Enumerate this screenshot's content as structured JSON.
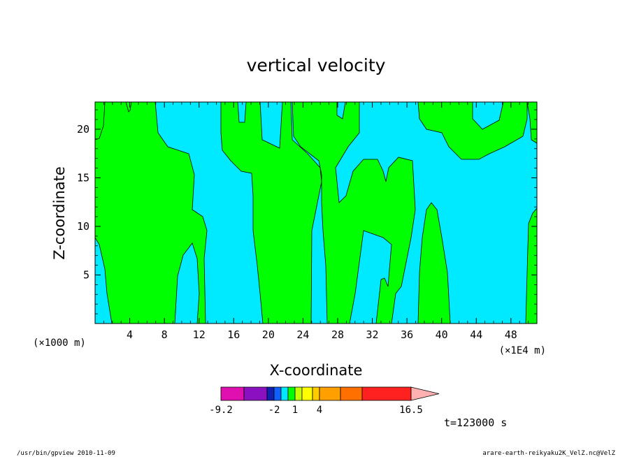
{
  "chart_data": {
    "type": "heatmap",
    "title": "vertical velocity",
    "xlabel": "X-coordinate",
    "ylabel": "Z-coordinate",
    "x_unit_left": "(×1000 m)",
    "x_unit_right": "(×1E4 m)",
    "xlim": [
      0,
      51
    ],
    "ylim": [
      0,
      22.8
    ],
    "x_ticks": [
      4,
      8,
      12,
      16,
      20,
      24,
      28,
      32,
      36,
      40,
      44,
      48
    ],
    "y_ticks": [
      5,
      10,
      15,
      20
    ],
    "colors": {
      "positive": "#00ff00",
      "negative": "#00eaff"
    },
    "colorbar": {
      "colors": [
        "#e010b0",
        "#8a10c0",
        "#1020b0",
        "#1060ff",
        "#00e8ff",
        "#00ff00",
        "#c8ff00",
        "#ffff00",
        "#ffcc00",
        "#ffa000",
        "#ff7000",
        "#ff2020",
        "#ff8080",
        "#ffb0b0"
      ],
      "labels": [
        {
          "text": "-9.2",
          "index": 0
        },
        {
          "text": "-2",
          "index": 3
        },
        {
          "text": "1",
          "index": 6
        },
        {
          "text": "4",
          "index": 9
        },
        {
          "text": "16.5",
          "index": 14
        }
      ]
    },
    "time_label": "t=123000 s"
  },
  "footer": {
    "left": "/usr/bin/gpview   2010-11-09",
    "right": "arare-earth-reikyaku2K_VelZ.nc@VelZ"
  }
}
